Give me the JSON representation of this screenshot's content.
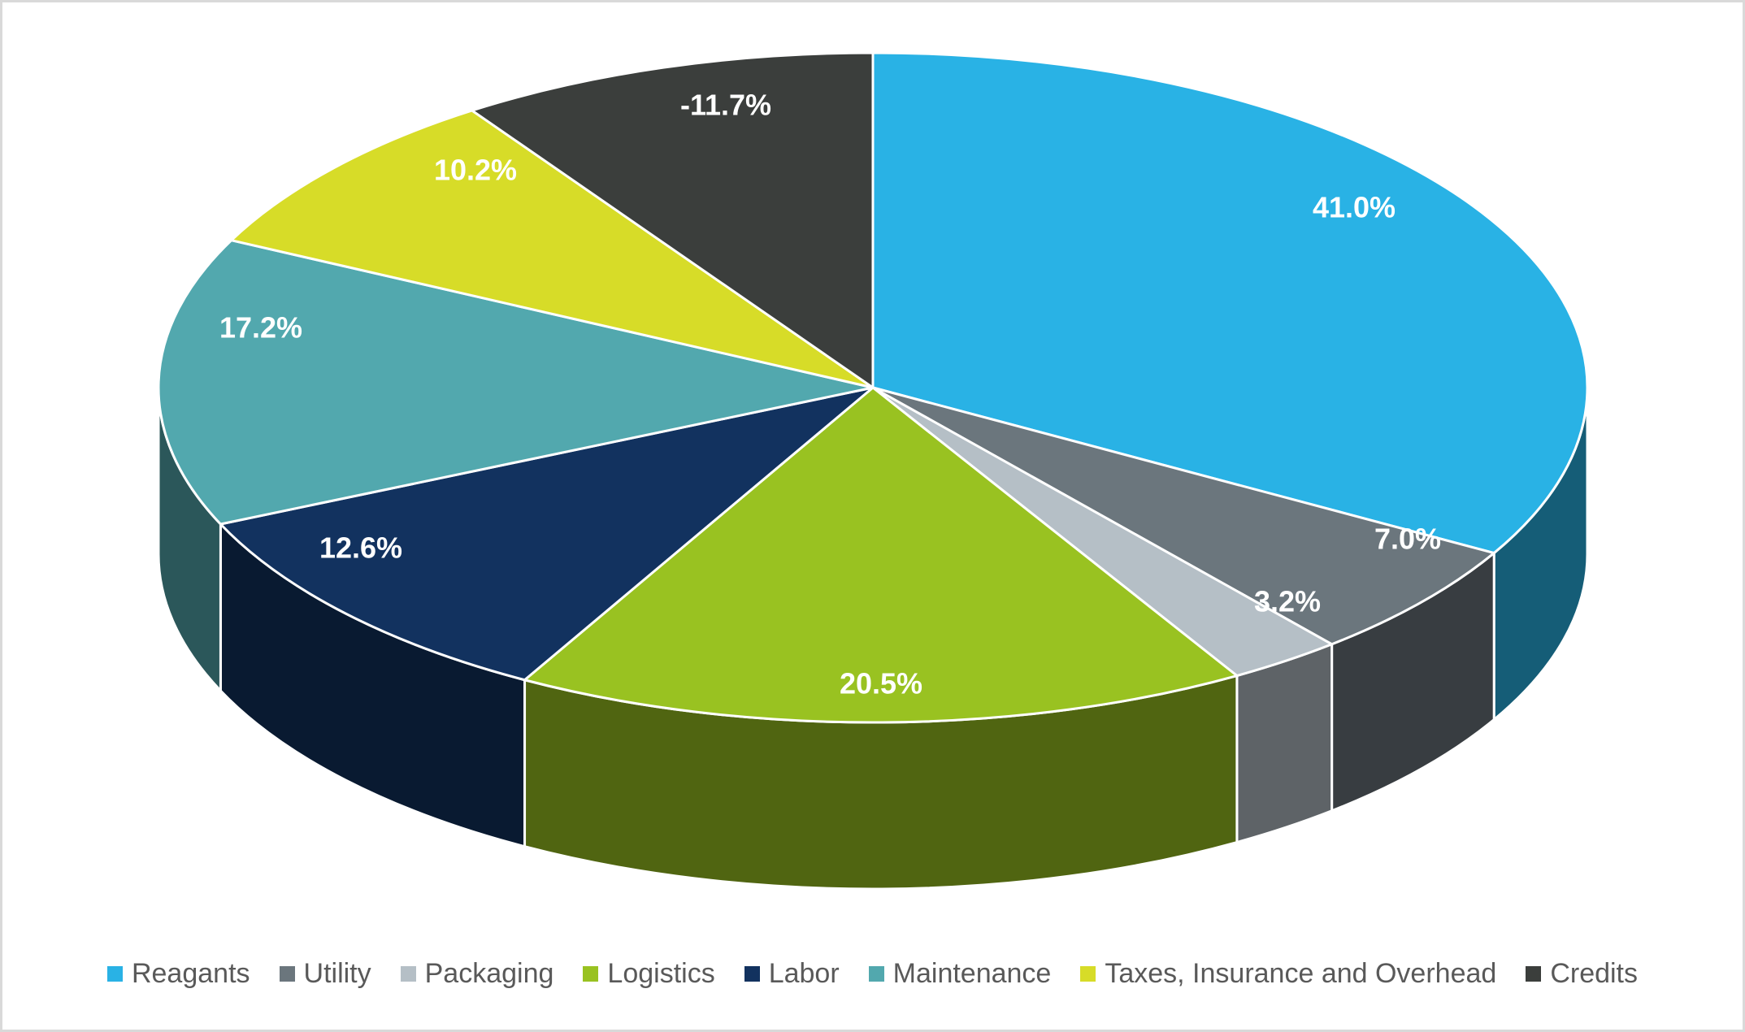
{
  "chart_data": {
    "type": "pie",
    "title": "",
    "effect": "3d",
    "labels": [
      "Reagants",
      "Utility",
      "Packaging",
      "Logistics",
      "Labor",
      "Maintenance",
      "Taxes, Insurance and Overhead",
      "Credits"
    ],
    "values": [
      41.0,
      7.0,
      3.2,
      20.5,
      12.6,
      17.2,
      10.2,
      -11.7
    ],
    "display_labels": [
      "41.0%",
      "7.0%",
      "3.2%",
      "20.5%",
      "12.6%",
      "17.2%",
      "10.2%",
      "-11.7%"
    ],
    "colors": [
      "#29B2E5",
      "#6B767D",
      "#B5BFC6",
      "#99C221",
      "#12325F",
      "#52A8AE",
      "#D7DC28",
      "#3B3E3C"
    ],
    "label_text_color": "#FFFFFF",
    "legend_position": "bottom",
    "legend_text_color": "#595959",
    "background_color": "#FFFFFF",
    "slice_border_color": "#FFFFFF"
  }
}
